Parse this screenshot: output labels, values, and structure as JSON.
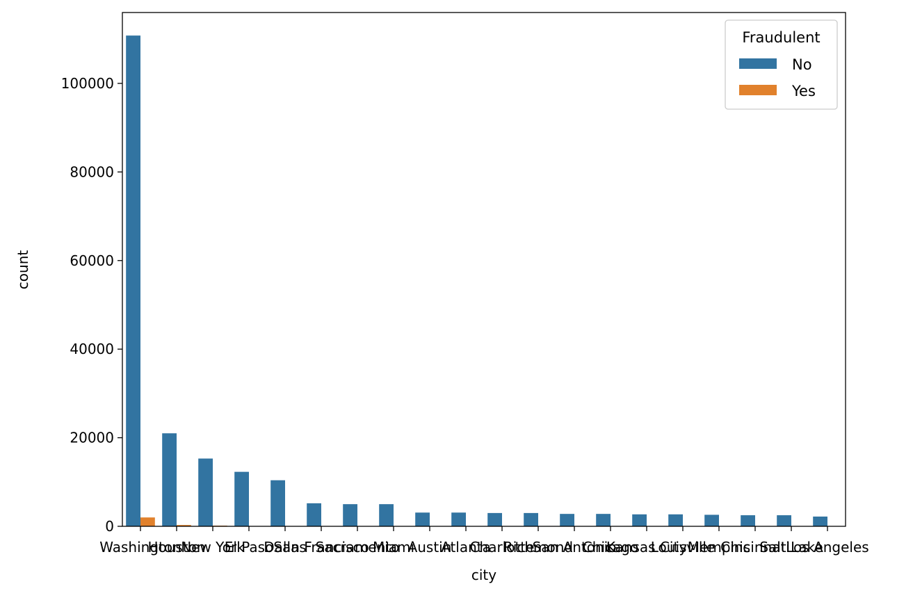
{
  "chart_data": {
    "type": "bar",
    "xlabel": "city",
    "ylabel": "count",
    "categories": [
      "Washington",
      "Houston",
      "New York",
      "El Paso",
      "Dallas",
      "San Francisco",
      "Sacramento",
      "Miami",
      "Austin",
      "Atlanta",
      "Charlotte",
      "Richmond",
      "San Antonio",
      "Chicago",
      "Kansas City",
      "Louisville",
      "Memphis",
      "Cincinnati",
      "Salt Lake",
      "Los Angeles"
    ],
    "series": [
      {
        "name": "No",
        "color": "#3274a1",
        "values": [
          110800,
          21000,
          15300,
          12300,
          10400,
          5200,
          5000,
          5000,
          3100,
          3100,
          3000,
          3000,
          2800,
          2800,
          2700,
          2700,
          2600,
          2500,
          2500,
          2200
        ]
      },
      {
        "name": "Yes",
        "color": "#e1812c",
        "values": [
          2000,
          300,
          150,
          60,
          50,
          30,
          30,
          30,
          20,
          20,
          20,
          20,
          20,
          20,
          20,
          20,
          20,
          20,
          20,
          20
        ]
      }
    ],
    "ylim": [
      0,
      116000
    ],
    "yticks": [
      0,
      20000,
      40000,
      60000,
      80000,
      100000
    ],
    "grid": false,
    "legend": {
      "title": "Fraudulent",
      "placement": "top-right"
    }
  }
}
